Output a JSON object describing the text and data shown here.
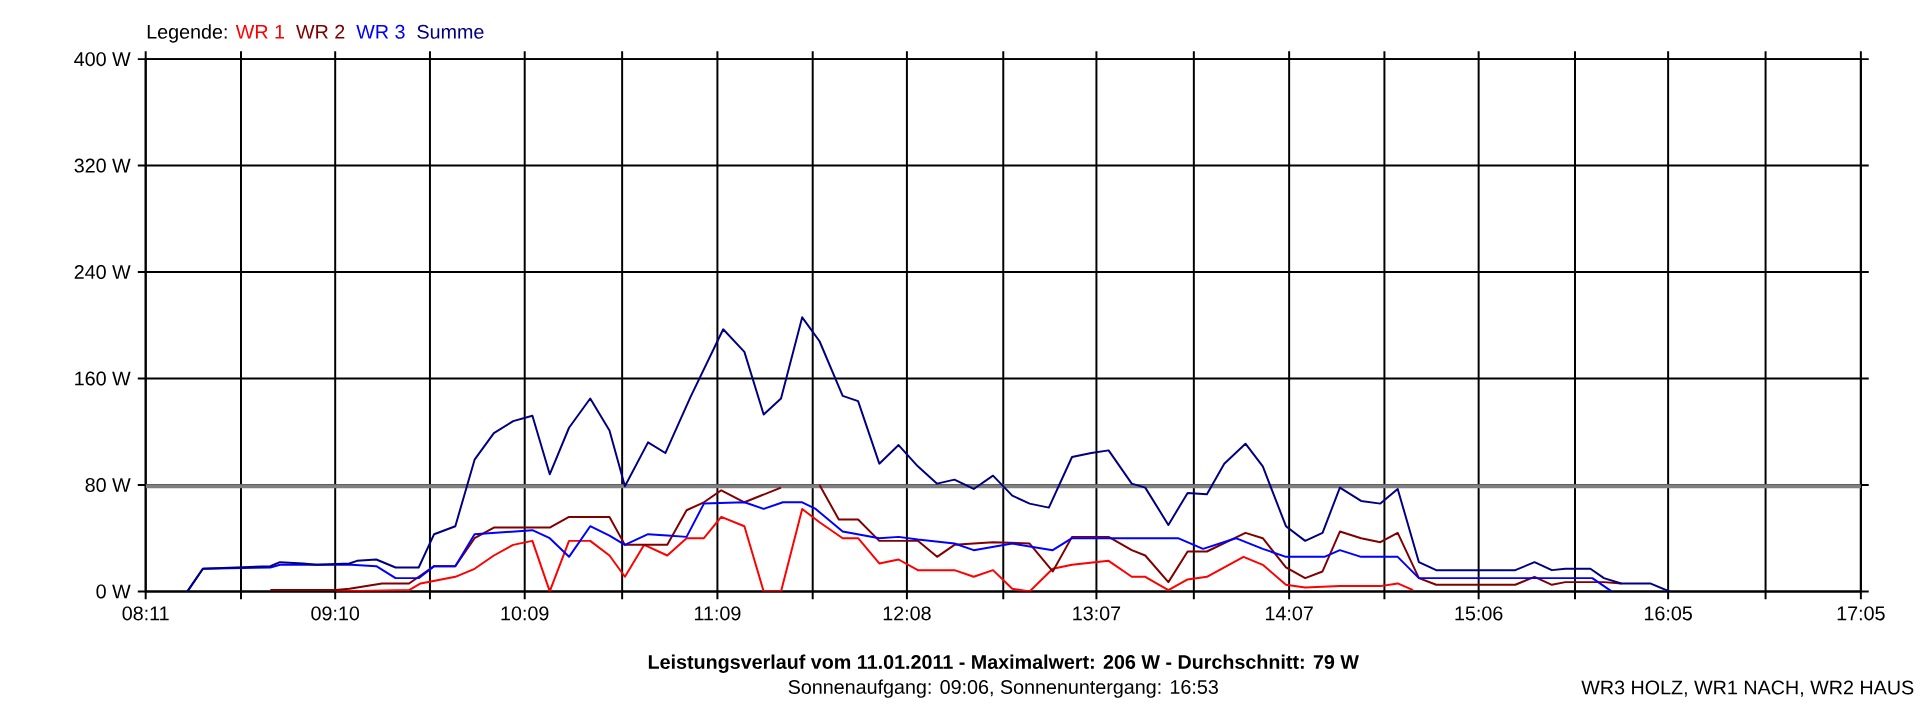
{
  "chart_data": {
    "type": "line",
    "title": "Leistungsverlauf vom 11.01.2011 - Maximalwert: 206 W - Durchschnitt: 79 W",
    "subtitle": "Sonnenaufgang: 09:06, Sonnenuntergang: 16:53",
    "legend_title": "Legende:",
    "annotations": [
      "WR3 HOLZ, WR1 NACH, WR2 HAUS"
    ],
    "xlim": [
      8.1833,
      17.0833
    ],
    "ylim": [
      0,
      400
    ],
    "xticks": [
      {
        "value": 8.1833,
        "label": "08:11"
      },
      {
        "value": 8.6778,
        "label": null
      },
      {
        "value": 9.1667,
        "label": "09:10"
      },
      {
        "value": 9.6583,
        "label": null
      },
      {
        "value": 10.15,
        "label": "10:09"
      },
      {
        "value": 10.6556,
        "label": null
      },
      {
        "value": 11.15,
        "label": "11:09"
      },
      {
        "value": 11.6444,
        "label": null
      },
      {
        "value": 12.1333,
        "label": "12:08"
      },
      {
        "value": 12.6333,
        "label": null
      },
      {
        "value": 13.1167,
        "label": "13:07"
      },
      {
        "value": 13.6222,
        "label": null
      },
      {
        "value": 14.1167,
        "label": "14:07"
      },
      {
        "value": 14.6111,
        "label": null
      },
      {
        "value": 15.1,
        "label": "15:06"
      },
      {
        "value": 15.6,
        "label": null
      },
      {
        "value": 16.0833,
        "label": "16:05"
      },
      {
        "value": 16.5889,
        "label": null
      },
      {
        "value": 17.0833,
        "label": "17:05"
      }
    ],
    "yticks": [
      {
        "value": 0,
        "label": "0 W"
      },
      {
        "value": 80,
        "label": "80 W"
      },
      {
        "value": 160,
        "label": "160 W"
      },
      {
        "value": 240,
        "label": "240 W"
      },
      {
        "value": 320,
        "label": "320 W"
      },
      {
        "value": 400,
        "label": "400 W"
      }
    ],
    "grid": true,
    "legend": "top left",
    "marker": "none",
    "line_style": "solid",
    "ref_lines": [
      {
        "axis": "y",
        "value": 79,
        "color": "#808080"
      }
    ],
    "series": [
      {
        "name": "WR 1",
        "color": "#ff0000",
        "x": [
          9.17,
          9.55,
          9.61,
          9.79,
          9.89,
          9.99,
          10.09,
          10.19,
          10.28,
          10.38,
          10.49,
          10.59,
          10.67,
          10.77,
          10.89,
          10.99,
          11.08,
          11.17,
          11.29,
          11.39,
          11.48,
          11.59,
          11.68,
          11.8,
          11.88,
          11.99,
          12.09,
          12.19,
          12.38,
          12.48,
          12.58,
          12.68,
          12.77,
          12.89,
          12.99,
          13.18,
          13.3,
          13.37,
          13.49,
          13.59,
          13.69,
          13.88,
          13.98,
          14.1,
          14.2,
          14.38,
          14.44,
          14.59,
          14.68,
          14.76
        ],
        "values": [
          0,
          1,
          6,
          11,
          17,
          27,
          35,
          38,
          0,
          38,
          38,
          27,
          11,
          35,
          27,
          40,
          40,
          56,
          49,
          0,
          0,
          62,
          52,
          40,
          40,
          21,
          24,
          16,
          16,
          11,
          16,
          2,
          0,
          17,
          20,
          23,
          11,
          11,
          1,
          9,
          11,
          26,
          20,
          5,
          3,
          4,
          4,
          4,
          6,
          1
        ]
      },
      {
        "name": "WR 2",
        "color": "#800000",
        "x": [
          8.83,
          9.0,
          9.17,
          9.24,
          9.41,
          9.55,
          9.68,
          9.79,
          9.89,
          9.99,
          10.28,
          10.38,
          10.59,
          10.67,
          10.89,
          10.99,
          11.08,
          11.17,
          11.29,
          11.48,
          11.58,
          11.68,
          11.78,
          11.88,
          11.99,
          12.19,
          12.29,
          12.38,
          12.58,
          12.77,
          12.89,
          12.99,
          13.18,
          13.3,
          13.37,
          13.49,
          13.59,
          13.69,
          13.89,
          13.98,
          14.1,
          14.2,
          14.29,
          14.38,
          14.49,
          14.59,
          14.68,
          14.79,
          14.88,
          15.29,
          15.39,
          15.48,
          15.55,
          15.75,
          15.84
        ],
        "values": [
          1,
          1,
          1,
          2,
          6,
          6,
          19,
          19,
          40,
          48,
          48,
          56,
          56,
          35,
          35,
          61,
          67,
          76,
          67,
          78,
          null,
          80,
          54,
          54,
          38,
          38,
          26,
          35,
          37,
          36,
          15,
          41,
          41,
          31,
          27,
          7,
          30,
          30,
          44,
          40,
          18,
          10,
          15,
          45,
          40,
          37,
          44,
          10,
          5,
          5,
          11,
          5,
          7,
          7,
          6
        ]
      },
      {
        "name": "WR 3",
        "color": "#0000ff",
        "x": [
          8.4,
          8.48,
          8.83,
          8.88,
          9.25,
          9.38,
          9.48,
          9.6,
          9.68,
          9.79,
          9.89,
          9.99,
          10.09,
          10.19,
          10.28,
          10.38,
          10.49,
          10.59,
          10.67,
          10.79,
          10.89,
          10.99,
          11.08,
          11.29,
          11.39,
          11.49,
          11.59,
          11.66,
          11.8,
          11.99,
          12.09,
          12.19,
          12.38,
          12.48,
          12.68,
          12.89,
          12.99,
          13.54,
          13.67,
          13.84,
          13.98,
          14.1,
          14.3,
          14.38,
          14.49,
          14.68,
          14.79,
          15.69,
          15.79
        ],
        "values": [
          0,
          17,
          18,
          20,
          20,
          19,
          10,
          10,
          19,
          19,
          43,
          44,
          45,
          46,
          40,
          26,
          49,
          42,
          35,
          43,
          42,
          41,
          66,
          67,
          62,
          67,
          67,
          62,
          45,
          40,
          41,
          39,
          36,
          31,
          36,
          31,
          40,
          40,
          32,
          40,
          32,
          26,
          26,
          31,
          26,
          26,
          10,
          10,
          0
        ]
      },
      {
        "name": "Summe",
        "color": "#000080",
        "x": [
          8.4,
          8.48,
          8.83,
          8.88,
          9.0,
          9.07,
          9.24,
          9.28,
          9.38,
          9.48,
          9.6,
          9.68,
          9.79,
          9.89,
          9.99,
          10.09,
          10.19,
          10.28,
          10.38,
          10.49,
          10.59,
          10.67,
          10.79,
          10.88,
          11.01,
          11.18,
          11.29,
          11.39,
          11.48,
          11.59,
          11.68,
          11.8,
          11.88,
          11.99,
          12.09,
          12.19,
          12.29,
          12.38,
          12.48,
          12.58,
          12.68,
          12.77,
          12.87,
          12.99,
          13.09,
          13.18,
          13.3,
          13.37,
          13.49,
          13.59,
          13.69,
          13.78,
          13.89,
          13.98,
          14.1,
          14.2,
          14.29,
          14.38,
          14.49,
          14.59,
          14.68,
          14.79,
          14.88,
          15.29,
          15.39,
          15.48,
          15.55,
          15.68,
          15.75,
          15.84,
          15.99,
          16.09
        ],
        "values": [
          0,
          17,
          19,
          22,
          21,
          20,
          21,
          23,
          24,
          18,
          18,
          43,
          49,
          99,
          119,
          128,
          132,
          88,
          123,
          145,
          121,
          79,
          112,
          104,
          146,
          197,
          180,
          133,
          145,
          206,
          188,
          147,
          143,
          96,
          110,
          94,
          81,
          84,
          77,
          87,
          72,
          66,
          63,
          101,
          104,
          106,
          81,
          78,
          50,
          74,
          73,
          96,
          111,
          94,
          49,
          38,
          44,
          78,
          68,
          66,
          77,
          22,
          16,
          16,
          22,
          16,
          17,
          17,
          10,
          6,
          6,
          0
        ]
      }
    ]
  }
}
